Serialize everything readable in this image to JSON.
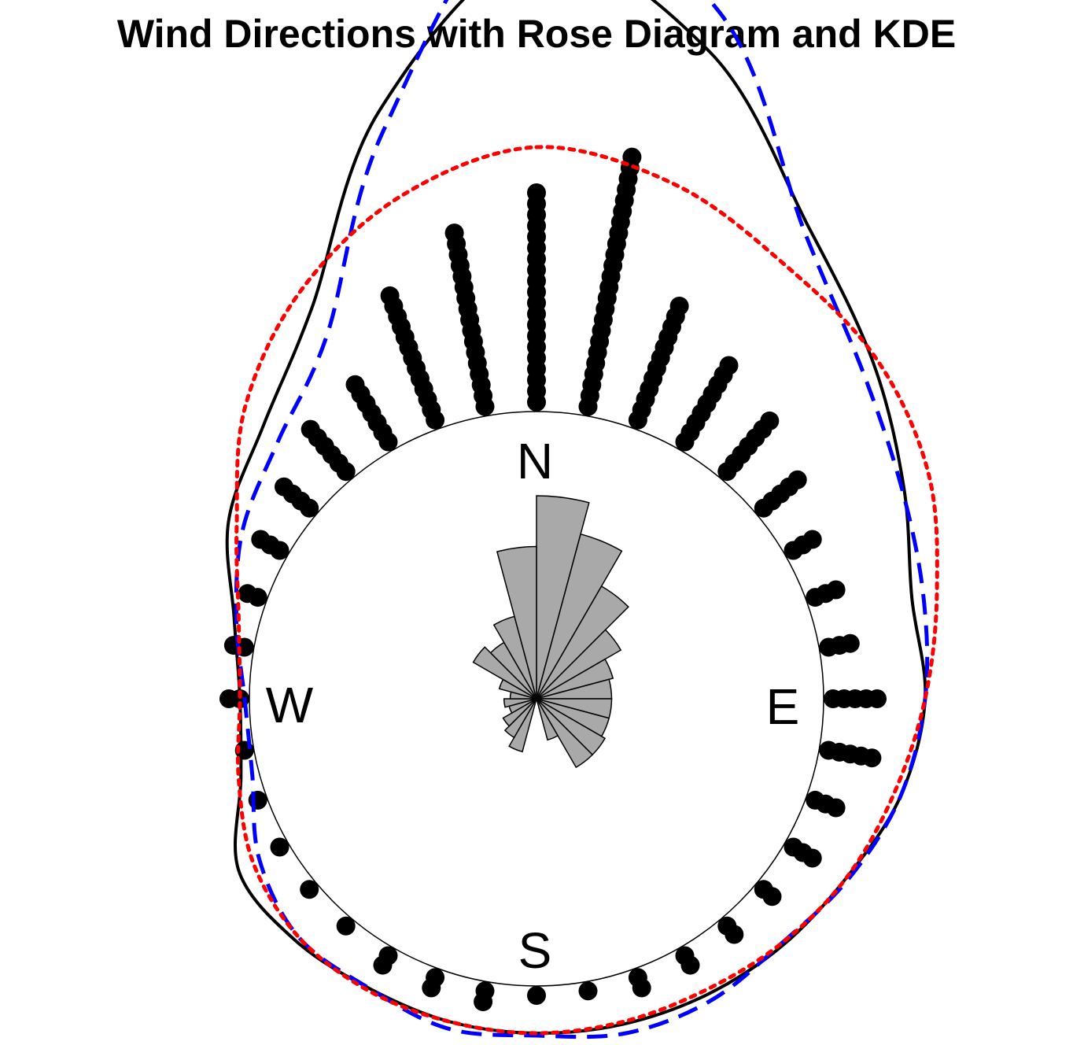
{
  "chart_data": {
    "type": "circular",
    "title": "Wind Directions with Rose Diagram and KDE",
    "compass_labels": {
      "north": "N",
      "east": "E",
      "south": "S",
      "west": "W"
    },
    "zero_direction": "north",
    "rotation": "clockwise",
    "rose": {
      "fill": "#a9a9a9",
      "stroke": "#000000",
      "bins_deg": [
        0,
        15,
        30,
        45,
        60,
        75,
        90,
        105,
        120,
        135,
        150,
        165,
        180,
        195,
        210,
        225,
        240,
        255,
        270,
        285,
        300,
        315,
        330,
        345
      ],
      "sqrt_relative_frequency": [
        1.0,
        0.84,
        0.64,
        0.48,
        0.39,
        0.37,
        0.37,
        0.37,
        0.39,
        0.39,
        0.21,
        0.0,
        0.0,
        0.27,
        0.22,
        0.19,
        0.14,
        0.16,
        0.13,
        0.19,
        0.36,
        0.32,
        0.42,
        0.75
      ]
    },
    "series": [
      {
        "name": "",
        "type": "kde",
        "color": "#000000",
        "style": "solid",
        "angles_deg": [
          0,
          15,
          30,
          45,
          60,
          75,
          90,
          105,
          120,
          135,
          150,
          165,
          180,
          195,
          210,
          225,
          240,
          255,
          270,
          285,
          300,
          315,
          330,
          345
        ],
        "density": [
          1.95,
          1.62,
          1.09,
          0.8,
          0.58,
          0.43,
          0.43,
          0.38,
          0.3,
          0.26,
          0.23,
          0.21,
          0.2,
          0.2,
          0.2,
          0.23,
          0.24,
          0.08,
          0.04,
          0.11,
          0.29,
          0.42,
          0.69,
          1.36
        ]
      },
      {
        "name": "",
        "type": "kde",
        "color": "#0000ff",
        "style": "dashed",
        "angles_deg": [
          0,
          15,
          30,
          45,
          60,
          75,
          90,
          105,
          120,
          135,
          150,
          165,
          180,
          195,
          210,
          225,
          240,
          255,
          270,
          285,
          300,
          315,
          330,
          345
        ],
        "density": [
          2.21,
          1.79,
          1.06,
          0.74,
          0.57,
          0.48,
          0.43,
          0.38,
          0.31,
          0.25,
          0.26,
          0.25,
          0.21,
          0.23,
          0.2,
          0.21,
          0.14,
          0.03,
          0.02,
          0.1,
          0.22,
          0.33,
          0.56,
          1.28
        ]
      },
      {
        "name": "",
        "type": "kde",
        "color": "#ff0000",
        "style": "dotted",
        "angles_deg": [
          0,
          15,
          30,
          45,
          60,
          75,
          90,
          105,
          120,
          135,
          150,
          165,
          180,
          195,
          210,
          225,
          240,
          255,
          270,
          285,
          300,
          315,
          330,
          345
        ],
        "density": [
          1.12,
          1.04,
          0.9,
          0.82,
          0.7,
          0.54,
          0.43,
          0.35,
          0.3,
          0.25,
          0.21,
          0.2,
          0.2,
          0.2,
          0.21,
          0.21,
          0.17,
          0.09,
          0.04,
          0.09,
          0.25,
          0.53,
          0.78,
          0.99
        ]
      }
    ],
    "observations": {
      "color": "#000000",
      "bins_deg": [
        0,
        10,
        20,
        30,
        40,
        50,
        60,
        70,
        80,
        90,
        100,
        110,
        120,
        130,
        140,
        150,
        160,
        170,
        180,
        190,
        200,
        210,
        220,
        230,
        240,
        250,
        260,
        270,
        280,
        290,
        300,
        310,
        320,
        330,
        340,
        350
      ],
      "stack_counts": [
        20,
        24,
        12,
        9,
        7,
        5,
        3,
        3,
        3,
        5,
        5,
        3,
        3,
        2,
        2,
        2,
        2,
        1,
        1,
        2,
        2,
        2,
        1,
        1,
        1,
        1,
        1,
        2,
        2,
        2,
        3,
        4,
        6,
        7,
        13,
        17
      ]
    }
  }
}
